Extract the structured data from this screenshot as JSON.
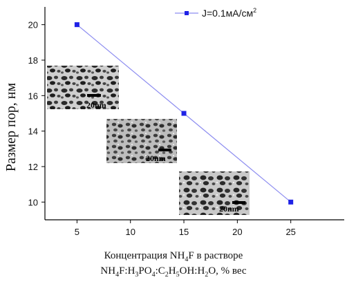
{
  "chart_data": {
    "type": "line",
    "x": [
      5,
      15,
      25
    ],
    "series": [
      {
        "name": "J=0.1мА/см",
        "values": [
          20,
          15,
          10
        ],
        "color": "#1f22e6",
        "line_color": "#8c8cf0"
      }
    ],
    "legend_unit_superscript": "2",
    "legend_position": "top-right",
    "ylabel": "Размер пор, нм",
    "xlabel_line1_pre": "Концентрация NH",
    "xlabel_line1_sub": "4",
    "xlabel_line1_post": "F в растворе",
    "xlabel_line2_parts": [
      {
        "t": "NH",
        "sub": false
      },
      {
        "t": "4",
        "sub": true
      },
      {
        "t": "F:H",
        "sub": false
      },
      {
        "t": "3",
        "sub": true
      },
      {
        "t": "PO",
        "sub": false
      },
      {
        "t": "4",
        "sub": true
      },
      {
        "t": ":C",
        "sub": false
      },
      {
        "t": "2",
        "sub": true
      },
      {
        "t": "H",
        "sub": false
      },
      {
        "t": "5",
        "sub": true
      },
      {
        "t": "OH:H",
        "sub": false
      },
      {
        "t": "2",
        "sub": true
      },
      {
        "t": "O, % вес",
        "sub": false
      }
    ],
    "xlim": [
      2,
      30
    ],
    "ylim": [
      9,
      21
    ],
    "xticks": [
      5,
      10,
      15,
      20,
      25
    ],
    "yticks": [
      10,
      12,
      14,
      16,
      18,
      20
    ],
    "grid": false,
    "insets": [
      {
        "label": "20nm"
      },
      {
        "label": "20nm"
      },
      {
        "label": "20nm"
      }
    ]
  }
}
